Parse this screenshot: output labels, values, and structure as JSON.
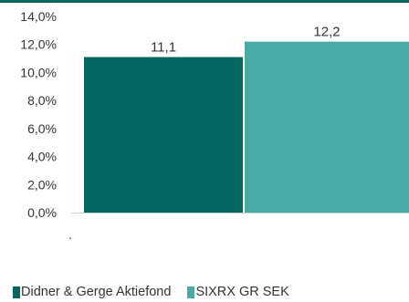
{
  "chart_data": {
    "type": "bar",
    "categories": [
      ""
    ],
    "series": [
      {
        "name": "Didner & Gerge Aktiefond",
        "values": [
          11.1
        ],
        "label": "11,1",
        "color": "#036660"
      },
      {
        "name": "SIXRX GR SEK",
        "values": [
          12.2
        ],
        "label": "12,2",
        "color": "#48aaa5"
      }
    ],
    "title": "",
    "xlabel": "",
    "ylabel": "",
    "ylim": [
      0,
      14
    ],
    "yticks": [
      "0,0%",
      "2,0%",
      "4,0%",
      "6,0%",
      "8,0%",
      "10,0%",
      "12,0%",
      "14,0%"
    ],
    "x_tick_label": ".",
    "grid": false,
    "legend_position": "bottom-left",
    "top_rule_color": "#036660",
    "axis_color": "#d0d0d0"
  }
}
